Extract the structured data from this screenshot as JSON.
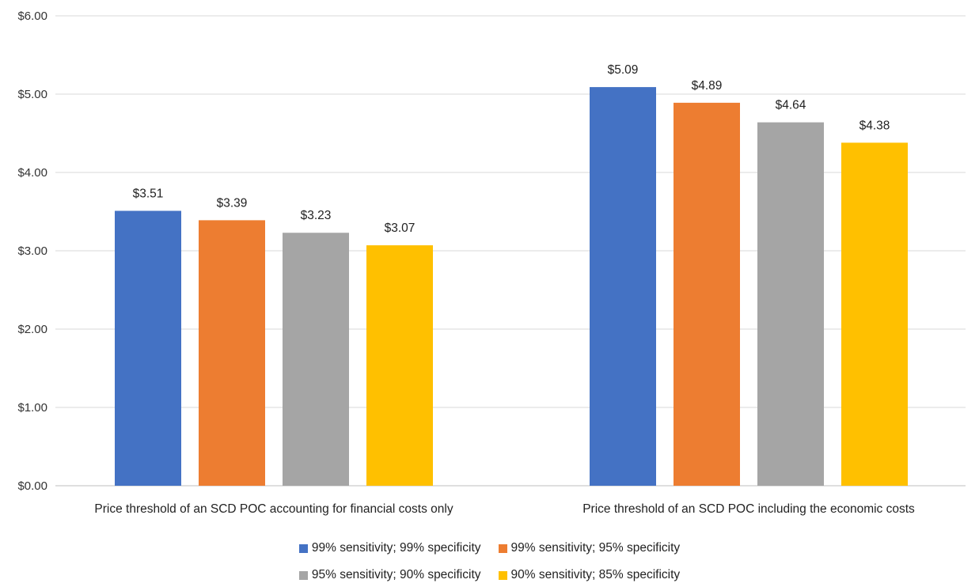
{
  "chart_data": {
    "type": "bar",
    "categories": [
      "Price threshold of an SCD POC accounting for financial costs only",
      "Price threshold of an SCD POC including the economic costs"
    ],
    "series": [
      {
        "name": "99% sensitivity; 99% specificity",
        "color": "#4472C4",
        "values": [
          3.51,
          5.09
        ],
        "labels": [
          "$3.51",
          "$5.09"
        ]
      },
      {
        "name": "99% sensitivity; 95% specificity",
        "color": "#ED7D31",
        "values": [
          3.39,
          4.89
        ],
        "labels": [
          "$3.39",
          "$4.89"
        ]
      },
      {
        "name": "95% sensitivity; 90% specificity",
        "color": "#A5A5A5",
        "values": [
          3.23,
          4.64
        ],
        "labels": [
          "$3.23",
          "$4.64"
        ]
      },
      {
        "name": "90% sensitivity; 85% specificity",
        "color": "#FFC000",
        "values": [
          3.07,
          4.38
        ],
        "labels": [
          "$3.07",
          "$4.38"
        ]
      }
    ],
    "ylim": [
      0,
      6
    ],
    "yticks": [
      0,
      1,
      2,
      3,
      4,
      5,
      6
    ],
    "ytick_labels": [
      "$0.00",
      "$1.00",
      "$2.00",
      "$3.00",
      "$4.00",
      "$5.00",
      "$6.00"
    ],
    "grid": true,
    "legend_position": "bottom"
  }
}
